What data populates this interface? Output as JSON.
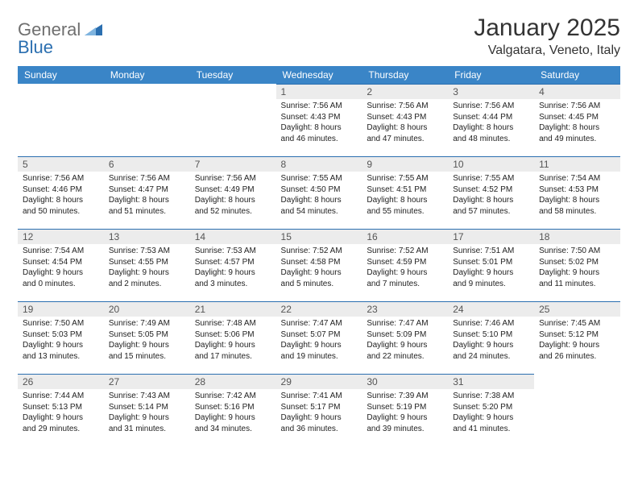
{
  "brand": {
    "general": "General",
    "blue": "Blue"
  },
  "header": {
    "month_title": "January 2025",
    "location": "Valgatara, Veneto, Italy"
  },
  "colors": {
    "header_bg": "#3a85c7",
    "day_bg": "#ececec",
    "rule": "#2b6fb0"
  },
  "weekdays": [
    "Sunday",
    "Monday",
    "Tuesday",
    "Wednesday",
    "Thursday",
    "Friday",
    "Saturday"
  ],
  "weeks": [
    [
      {
        "empty": true
      },
      {
        "empty": true
      },
      {
        "empty": true
      },
      {
        "num": "1",
        "l1": "Sunrise: 7:56 AM",
        "l2": "Sunset: 4:43 PM",
        "l3": "Daylight: 8 hours",
        "l4": "and 46 minutes."
      },
      {
        "num": "2",
        "l1": "Sunrise: 7:56 AM",
        "l2": "Sunset: 4:43 PM",
        "l3": "Daylight: 8 hours",
        "l4": "and 47 minutes."
      },
      {
        "num": "3",
        "l1": "Sunrise: 7:56 AM",
        "l2": "Sunset: 4:44 PM",
        "l3": "Daylight: 8 hours",
        "l4": "and 48 minutes."
      },
      {
        "num": "4",
        "l1": "Sunrise: 7:56 AM",
        "l2": "Sunset: 4:45 PM",
        "l3": "Daylight: 8 hours",
        "l4": "and 49 minutes."
      }
    ],
    [
      {
        "num": "5",
        "l1": "Sunrise: 7:56 AM",
        "l2": "Sunset: 4:46 PM",
        "l3": "Daylight: 8 hours",
        "l4": "and 50 minutes."
      },
      {
        "num": "6",
        "l1": "Sunrise: 7:56 AM",
        "l2": "Sunset: 4:47 PM",
        "l3": "Daylight: 8 hours",
        "l4": "and 51 minutes."
      },
      {
        "num": "7",
        "l1": "Sunrise: 7:56 AM",
        "l2": "Sunset: 4:49 PM",
        "l3": "Daylight: 8 hours",
        "l4": "and 52 minutes."
      },
      {
        "num": "8",
        "l1": "Sunrise: 7:55 AM",
        "l2": "Sunset: 4:50 PM",
        "l3": "Daylight: 8 hours",
        "l4": "and 54 minutes."
      },
      {
        "num": "9",
        "l1": "Sunrise: 7:55 AM",
        "l2": "Sunset: 4:51 PM",
        "l3": "Daylight: 8 hours",
        "l4": "and 55 minutes."
      },
      {
        "num": "10",
        "l1": "Sunrise: 7:55 AM",
        "l2": "Sunset: 4:52 PM",
        "l3": "Daylight: 8 hours",
        "l4": "and 57 minutes."
      },
      {
        "num": "11",
        "l1": "Sunrise: 7:54 AM",
        "l2": "Sunset: 4:53 PM",
        "l3": "Daylight: 8 hours",
        "l4": "and 58 minutes."
      }
    ],
    [
      {
        "num": "12",
        "l1": "Sunrise: 7:54 AM",
        "l2": "Sunset: 4:54 PM",
        "l3": "Daylight: 9 hours",
        "l4": "and 0 minutes."
      },
      {
        "num": "13",
        "l1": "Sunrise: 7:53 AM",
        "l2": "Sunset: 4:55 PM",
        "l3": "Daylight: 9 hours",
        "l4": "and 2 minutes."
      },
      {
        "num": "14",
        "l1": "Sunrise: 7:53 AM",
        "l2": "Sunset: 4:57 PM",
        "l3": "Daylight: 9 hours",
        "l4": "and 3 minutes."
      },
      {
        "num": "15",
        "l1": "Sunrise: 7:52 AM",
        "l2": "Sunset: 4:58 PM",
        "l3": "Daylight: 9 hours",
        "l4": "and 5 minutes."
      },
      {
        "num": "16",
        "l1": "Sunrise: 7:52 AM",
        "l2": "Sunset: 4:59 PM",
        "l3": "Daylight: 9 hours",
        "l4": "and 7 minutes."
      },
      {
        "num": "17",
        "l1": "Sunrise: 7:51 AM",
        "l2": "Sunset: 5:01 PM",
        "l3": "Daylight: 9 hours",
        "l4": "and 9 minutes."
      },
      {
        "num": "18",
        "l1": "Sunrise: 7:50 AM",
        "l2": "Sunset: 5:02 PM",
        "l3": "Daylight: 9 hours",
        "l4": "and 11 minutes."
      }
    ],
    [
      {
        "num": "19",
        "l1": "Sunrise: 7:50 AM",
        "l2": "Sunset: 5:03 PM",
        "l3": "Daylight: 9 hours",
        "l4": "and 13 minutes."
      },
      {
        "num": "20",
        "l1": "Sunrise: 7:49 AM",
        "l2": "Sunset: 5:05 PM",
        "l3": "Daylight: 9 hours",
        "l4": "and 15 minutes."
      },
      {
        "num": "21",
        "l1": "Sunrise: 7:48 AM",
        "l2": "Sunset: 5:06 PM",
        "l3": "Daylight: 9 hours",
        "l4": "and 17 minutes."
      },
      {
        "num": "22",
        "l1": "Sunrise: 7:47 AM",
        "l2": "Sunset: 5:07 PM",
        "l3": "Daylight: 9 hours",
        "l4": "and 19 minutes."
      },
      {
        "num": "23",
        "l1": "Sunrise: 7:47 AM",
        "l2": "Sunset: 5:09 PM",
        "l3": "Daylight: 9 hours",
        "l4": "and 22 minutes."
      },
      {
        "num": "24",
        "l1": "Sunrise: 7:46 AM",
        "l2": "Sunset: 5:10 PM",
        "l3": "Daylight: 9 hours",
        "l4": "and 24 minutes."
      },
      {
        "num": "25",
        "l1": "Sunrise: 7:45 AM",
        "l2": "Sunset: 5:12 PM",
        "l3": "Daylight: 9 hours",
        "l4": "and 26 minutes."
      }
    ],
    [
      {
        "num": "26",
        "l1": "Sunrise: 7:44 AM",
        "l2": "Sunset: 5:13 PM",
        "l3": "Daylight: 9 hours",
        "l4": "and 29 minutes."
      },
      {
        "num": "27",
        "l1": "Sunrise: 7:43 AM",
        "l2": "Sunset: 5:14 PM",
        "l3": "Daylight: 9 hours",
        "l4": "and 31 minutes."
      },
      {
        "num": "28",
        "l1": "Sunrise: 7:42 AM",
        "l2": "Sunset: 5:16 PM",
        "l3": "Daylight: 9 hours",
        "l4": "and 34 minutes."
      },
      {
        "num": "29",
        "l1": "Sunrise: 7:41 AM",
        "l2": "Sunset: 5:17 PM",
        "l3": "Daylight: 9 hours",
        "l4": "and 36 minutes."
      },
      {
        "num": "30",
        "l1": "Sunrise: 7:39 AM",
        "l2": "Sunset: 5:19 PM",
        "l3": "Daylight: 9 hours",
        "l4": "and 39 minutes."
      },
      {
        "num": "31",
        "l1": "Sunrise: 7:38 AM",
        "l2": "Sunset: 5:20 PM",
        "l3": "Daylight: 9 hours",
        "l4": "and 41 minutes."
      },
      {
        "empty": true
      }
    ]
  ]
}
